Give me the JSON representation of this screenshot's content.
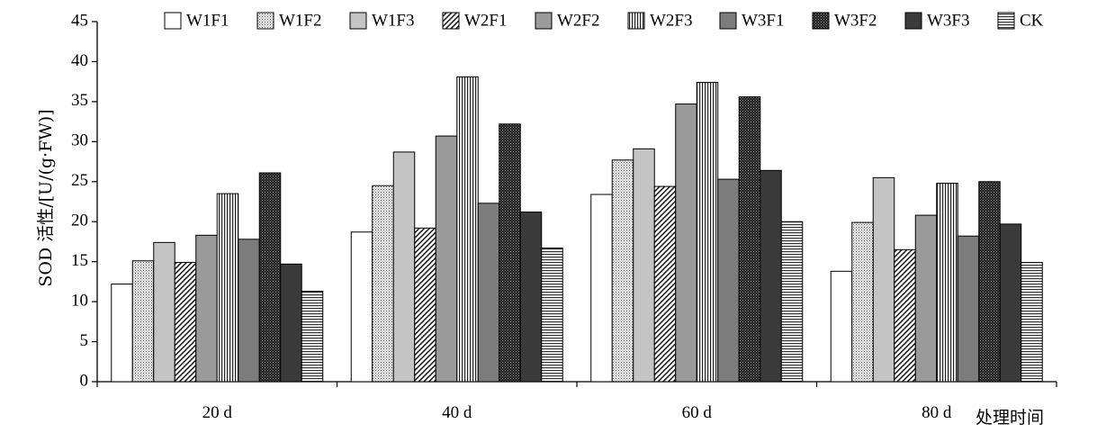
{
  "chart_data": {
    "type": "bar",
    "ylabel": "SOD 活性/[U/(g·FW)]",
    "xlabel": "处理时间",
    "ylim": [
      0,
      45
    ],
    "yticks": [
      0,
      5,
      10,
      15,
      20,
      25,
      30,
      35,
      40,
      45
    ],
    "categories": [
      "20 d",
      "40 d",
      "60 d",
      "80 d"
    ],
    "grid": false,
    "legend_position": "top",
    "series": [
      {
        "name": "W1F1",
        "pattern": "white",
        "values": [
          12.2,
          18.7,
          23.4,
          13.8
        ]
      },
      {
        "name": "W1F2",
        "pattern": "dots",
        "values": [
          15.1,
          24.5,
          27.7,
          19.9
        ]
      },
      {
        "name": "W1F3",
        "pattern": "lightgray",
        "values": [
          17.4,
          28.7,
          29.1,
          25.5
        ]
      },
      {
        "name": "W2F1",
        "pattern": "diagonal",
        "values": [
          14.9,
          19.2,
          24.4,
          16.5
        ]
      },
      {
        "name": "W2F2",
        "pattern": "midgray",
        "values": [
          18.3,
          30.7,
          34.7,
          20.8
        ]
      },
      {
        "name": "W2F3",
        "pattern": "vertical",
        "values": [
          23.5,
          38.1,
          37.4,
          24.8
        ]
      },
      {
        "name": "W3F1",
        "pattern": "gray",
        "values": [
          17.8,
          22.3,
          25.3,
          18.2
        ]
      },
      {
        "name": "W3F2",
        "pattern": "darkdots",
        "values": [
          26.1,
          32.2,
          35.6,
          25.0
        ]
      },
      {
        "name": "W3F3",
        "pattern": "darkgray",
        "values": [
          14.7,
          21.2,
          26.4,
          19.7
        ]
      },
      {
        "name": "CK",
        "pattern": "horizontal",
        "values": [
          11.3,
          16.7,
          20.0,
          14.9
        ]
      }
    ]
  }
}
